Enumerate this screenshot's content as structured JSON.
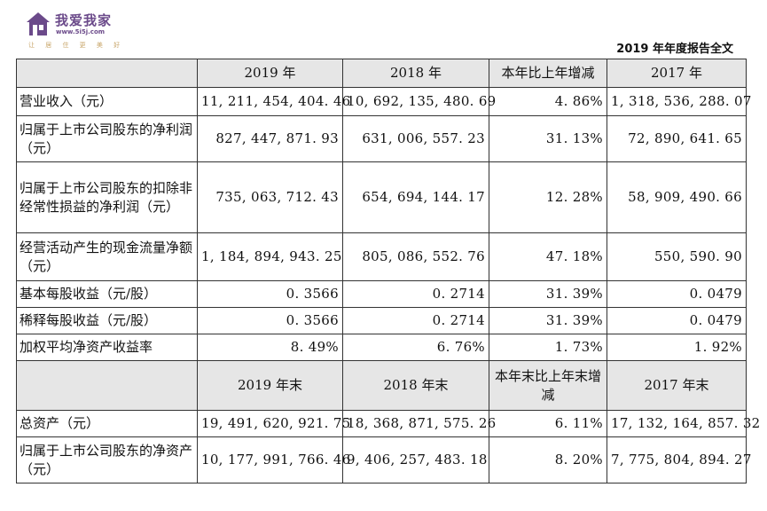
{
  "logo": {
    "name": "我爱我家",
    "url": "www.5i5j.com",
    "slogan": "让 居 住 更 美 好"
  },
  "report_title": "2019 年年度报告全文",
  "table": {
    "header1": [
      "",
      "2019 年",
      "2018 年",
      "本年比上年增减",
      "2017 年"
    ],
    "rows1": [
      {
        "label": "营业收入（元）",
        "v2019": "11, 211, 454, 404. 46",
        "v2018": "10, 692, 135, 480. 69",
        "change": "4. 86%",
        "v2017": "1, 318, 536, 288. 07"
      },
      {
        "label": "归属于上市公司股东的净利润（元）",
        "v2019": "827, 447, 871. 93",
        "v2018": "631, 006, 557. 23",
        "change": "31. 13%",
        "v2017": "72, 890, 641. 65"
      },
      {
        "label": "归属于上市公司股东的扣除非经常性损益的净利润（元）",
        "v2019": "735, 063, 712. 43",
        "v2018": "654, 694, 144. 17",
        "change": "12. 28%",
        "v2017": "58, 909, 490. 66"
      },
      {
        "label": "经营活动产生的现金流量净额（元）",
        "v2019": "1, 184, 894, 943. 25",
        "v2018": "805, 086, 552. 76",
        "change": "47. 18%",
        "v2017": "550, 590. 90"
      },
      {
        "label": "基本每股收益（元/股）",
        "v2019": "0. 3566",
        "v2018": "0. 2714",
        "change": "31. 39%",
        "v2017": "0. 0479"
      },
      {
        "label": "稀释每股收益（元/股）",
        "v2019": "0. 3566",
        "v2018": "0. 2714",
        "change": "31. 39%",
        "v2017": "0. 0479"
      },
      {
        "label": "加权平均净资产收益率",
        "v2019": "8. 49%",
        "v2018": "6. 76%",
        "change": "1. 73%",
        "v2017": "1. 92%"
      }
    ],
    "header2": [
      "",
      "2019 年末",
      "2018 年末",
      "本年末比上年末增减",
      "2017 年末"
    ],
    "rows2": [
      {
        "label": "总资产（元）",
        "v2019": "19, 491, 620, 921. 75",
        "v2018": "18, 368, 871, 575. 26",
        "change": "6. 11%",
        "v2017": "17, 132, 164, 857. 32"
      },
      {
        "label": "归属于上市公司股东的净资产（元）",
        "v2019": "10, 177, 991, 766. 46",
        "v2018": "9, 406, 257, 483. 18",
        "change": "8. 20%",
        "v2017": "7, 775, 804, 894. 27"
      }
    ]
  }
}
